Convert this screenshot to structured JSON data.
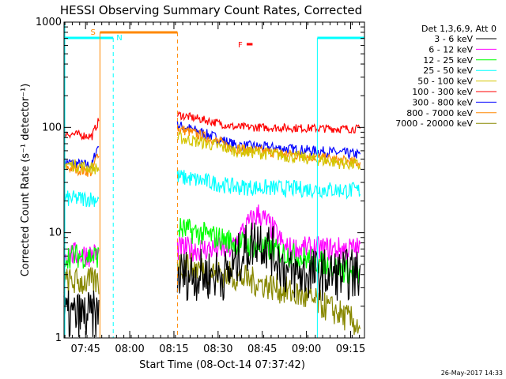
{
  "chart_data": {
    "type": "line",
    "title": "HESSI Observing Summary Count Rates, Corrected",
    "ylabel": "Corrected Count Rate (s⁻¹ detector⁻¹)",
    "xlabel": "Start Time (08-Oct-14 07:37:42)",
    "y_scale": "log",
    "ylim": [
      1,
      1000
    ],
    "y_ticks": [
      {
        "value": 1,
        "label": "1"
      },
      {
        "value": 10,
        "label": "10"
      },
      {
        "value": 100,
        "label": "100"
      },
      {
        "value": 1000,
        "label": "1000"
      }
    ],
    "xlim_min": [
      0,
      102
    ],
    "x_ticks": [
      {
        "value": 7.3,
        "label": "07:45"
      },
      {
        "value": 22.3,
        "label": "08:00"
      },
      {
        "value": 37.3,
        "label": "08:15"
      },
      {
        "value": 52.3,
        "label": "08:30"
      },
      {
        "value": 67.3,
        "label": "08:45"
      },
      {
        "value": 82.3,
        "label": "09:00"
      },
      {
        "value": 97.3,
        "label": "09:15"
      }
    ],
    "legend_title": "Det 1,3,6,9, Att 0",
    "series": [
      {
        "name": "3 - 6 keV",
        "color": "#000000"
      },
      {
        "name": "6 - 12 keV",
        "color": "#ff00ff"
      },
      {
        "name": "12 - 25 keV",
        "color": "#00ff00"
      },
      {
        "name": "25 - 50 keV",
        "color": "#00ffff"
      },
      {
        "name": "50 - 100 keV",
        "color": "#d4c400"
      },
      {
        "name": "100 - 300 keV",
        "color": "#ff0000"
      },
      {
        "name": "300 - 800 keV",
        "color": "#0000ff"
      },
      {
        "name": "800 - 7000 keV",
        "color": "#ff8800"
      },
      {
        "name": "7000 - 20000 keV",
        "color": "#888800"
      }
    ],
    "annotations": [
      {
        "label": "S",
        "color": "#ff8800",
        "x_start": 12.2,
        "x_end": 38.5
      },
      {
        "label": "N",
        "color": "#00ffff",
        "x_start": 0,
        "x_end": 16.7
      },
      {
        "label": "F",
        "color": "#ff0000",
        "x_start": 62,
        "x_end": 64
      },
      {
        "label": "",
        "color": "#00ffff",
        "x_start": 86,
        "x_end": 102
      }
    ],
    "timestamp": "26-May-2017 14:33"
  }
}
